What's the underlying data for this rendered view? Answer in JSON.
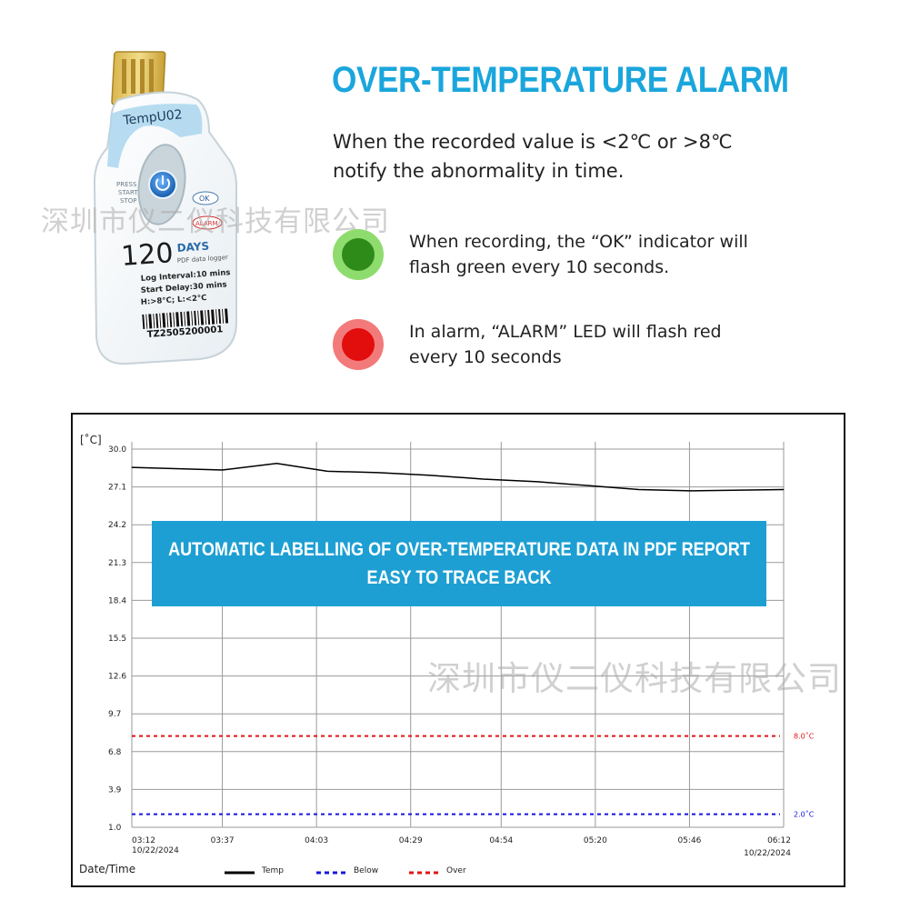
{
  "header": {
    "title": "OVER-TEMPERATURE ALARM",
    "description_line1": "When the recorded value is <2℃ or >8℃",
    "description_line2": "notify the abnormality in time."
  },
  "indicators": [
    {
      "line1": "When recording, the “OK” indicator will",
      "line2": "flash green every 10 seconds.",
      "color": "#2e8b1a",
      "halo": "#8fdc6e"
    },
    {
      "line1": "In alarm, “ALARM”  LED will flash red",
      "line2": "every 10 seconds",
      "color": "#e20d0d",
      "halo": "#f37a7a"
    }
  ],
  "device": {
    "model": "TempU02",
    "button_label_1": "PRESS",
    "button_label_2": "START",
    "button_label_3": "STOP",
    "ok_label": "OK",
    "alarm_label": "ALARM",
    "days_number": "120",
    "days_word": "DAYS",
    "subtitle": "PDF data logger",
    "log_interval": "Log Interval:10 mins",
    "start_delay": "Start Delay:30 mins",
    "limits": "H:>8°C; L:<2°C",
    "serial": "TZ2505200001"
  },
  "watermark": "深圳市仪二仪科技有限公司",
  "banner": {
    "line1": "AUTOMATIC LABELLING OF OVER-TEMPERATURE DATA IN PDF REPORT",
    "line2": "EASY TO TRACE BACK"
  },
  "chart_data": {
    "type": "line",
    "ylabel": "[˚C]",
    "xlabel": "Date/Time",
    "ylim": [
      1.0,
      30.0
    ],
    "yticks": [
      "30.0",
      "27.1",
      "24.2",
      "21.3",
      "18.4",
      "15.5",
      "12.6",
      "9.7",
      "6.8",
      "3.9",
      "1.0"
    ],
    "xticks": [
      "03:12",
      "03:37",
      "04:03",
      "04:29",
      "04:54",
      "05:20",
      "05:46",
      "06:12"
    ],
    "x_start_date": "10/22/2024",
    "x_end_date": "10/22/2024",
    "grid": true,
    "series": [
      {
        "name": "Temp",
        "color": "#000000",
        "style": "solid",
        "x": [
          "03:12",
          "03:37",
          "03:52",
          "04:06",
          "04:20",
          "04:34",
          "04:49",
          "05:04",
          "05:18",
          "05:32",
          "05:46",
          "06:12"
        ],
        "values": [
          28.6,
          28.4,
          28.9,
          28.3,
          28.2,
          28.0,
          27.7,
          27.5,
          27.2,
          26.9,
          26.8,
          26.9
        ]
      },
      {
        "name": "Below",
        "color": "#1515e0",
        "style": "dashed",
        "threshold": 2.0,
        "label": "2.0˚C"
      },
      {
        "name": "Over",
        "color": "#e01515",
        "style": "dashed",
        "threshold": 8.0,
        "label": "8.0˚C"
      }
    ],
    "legend_position": "bottom"
  }
}
